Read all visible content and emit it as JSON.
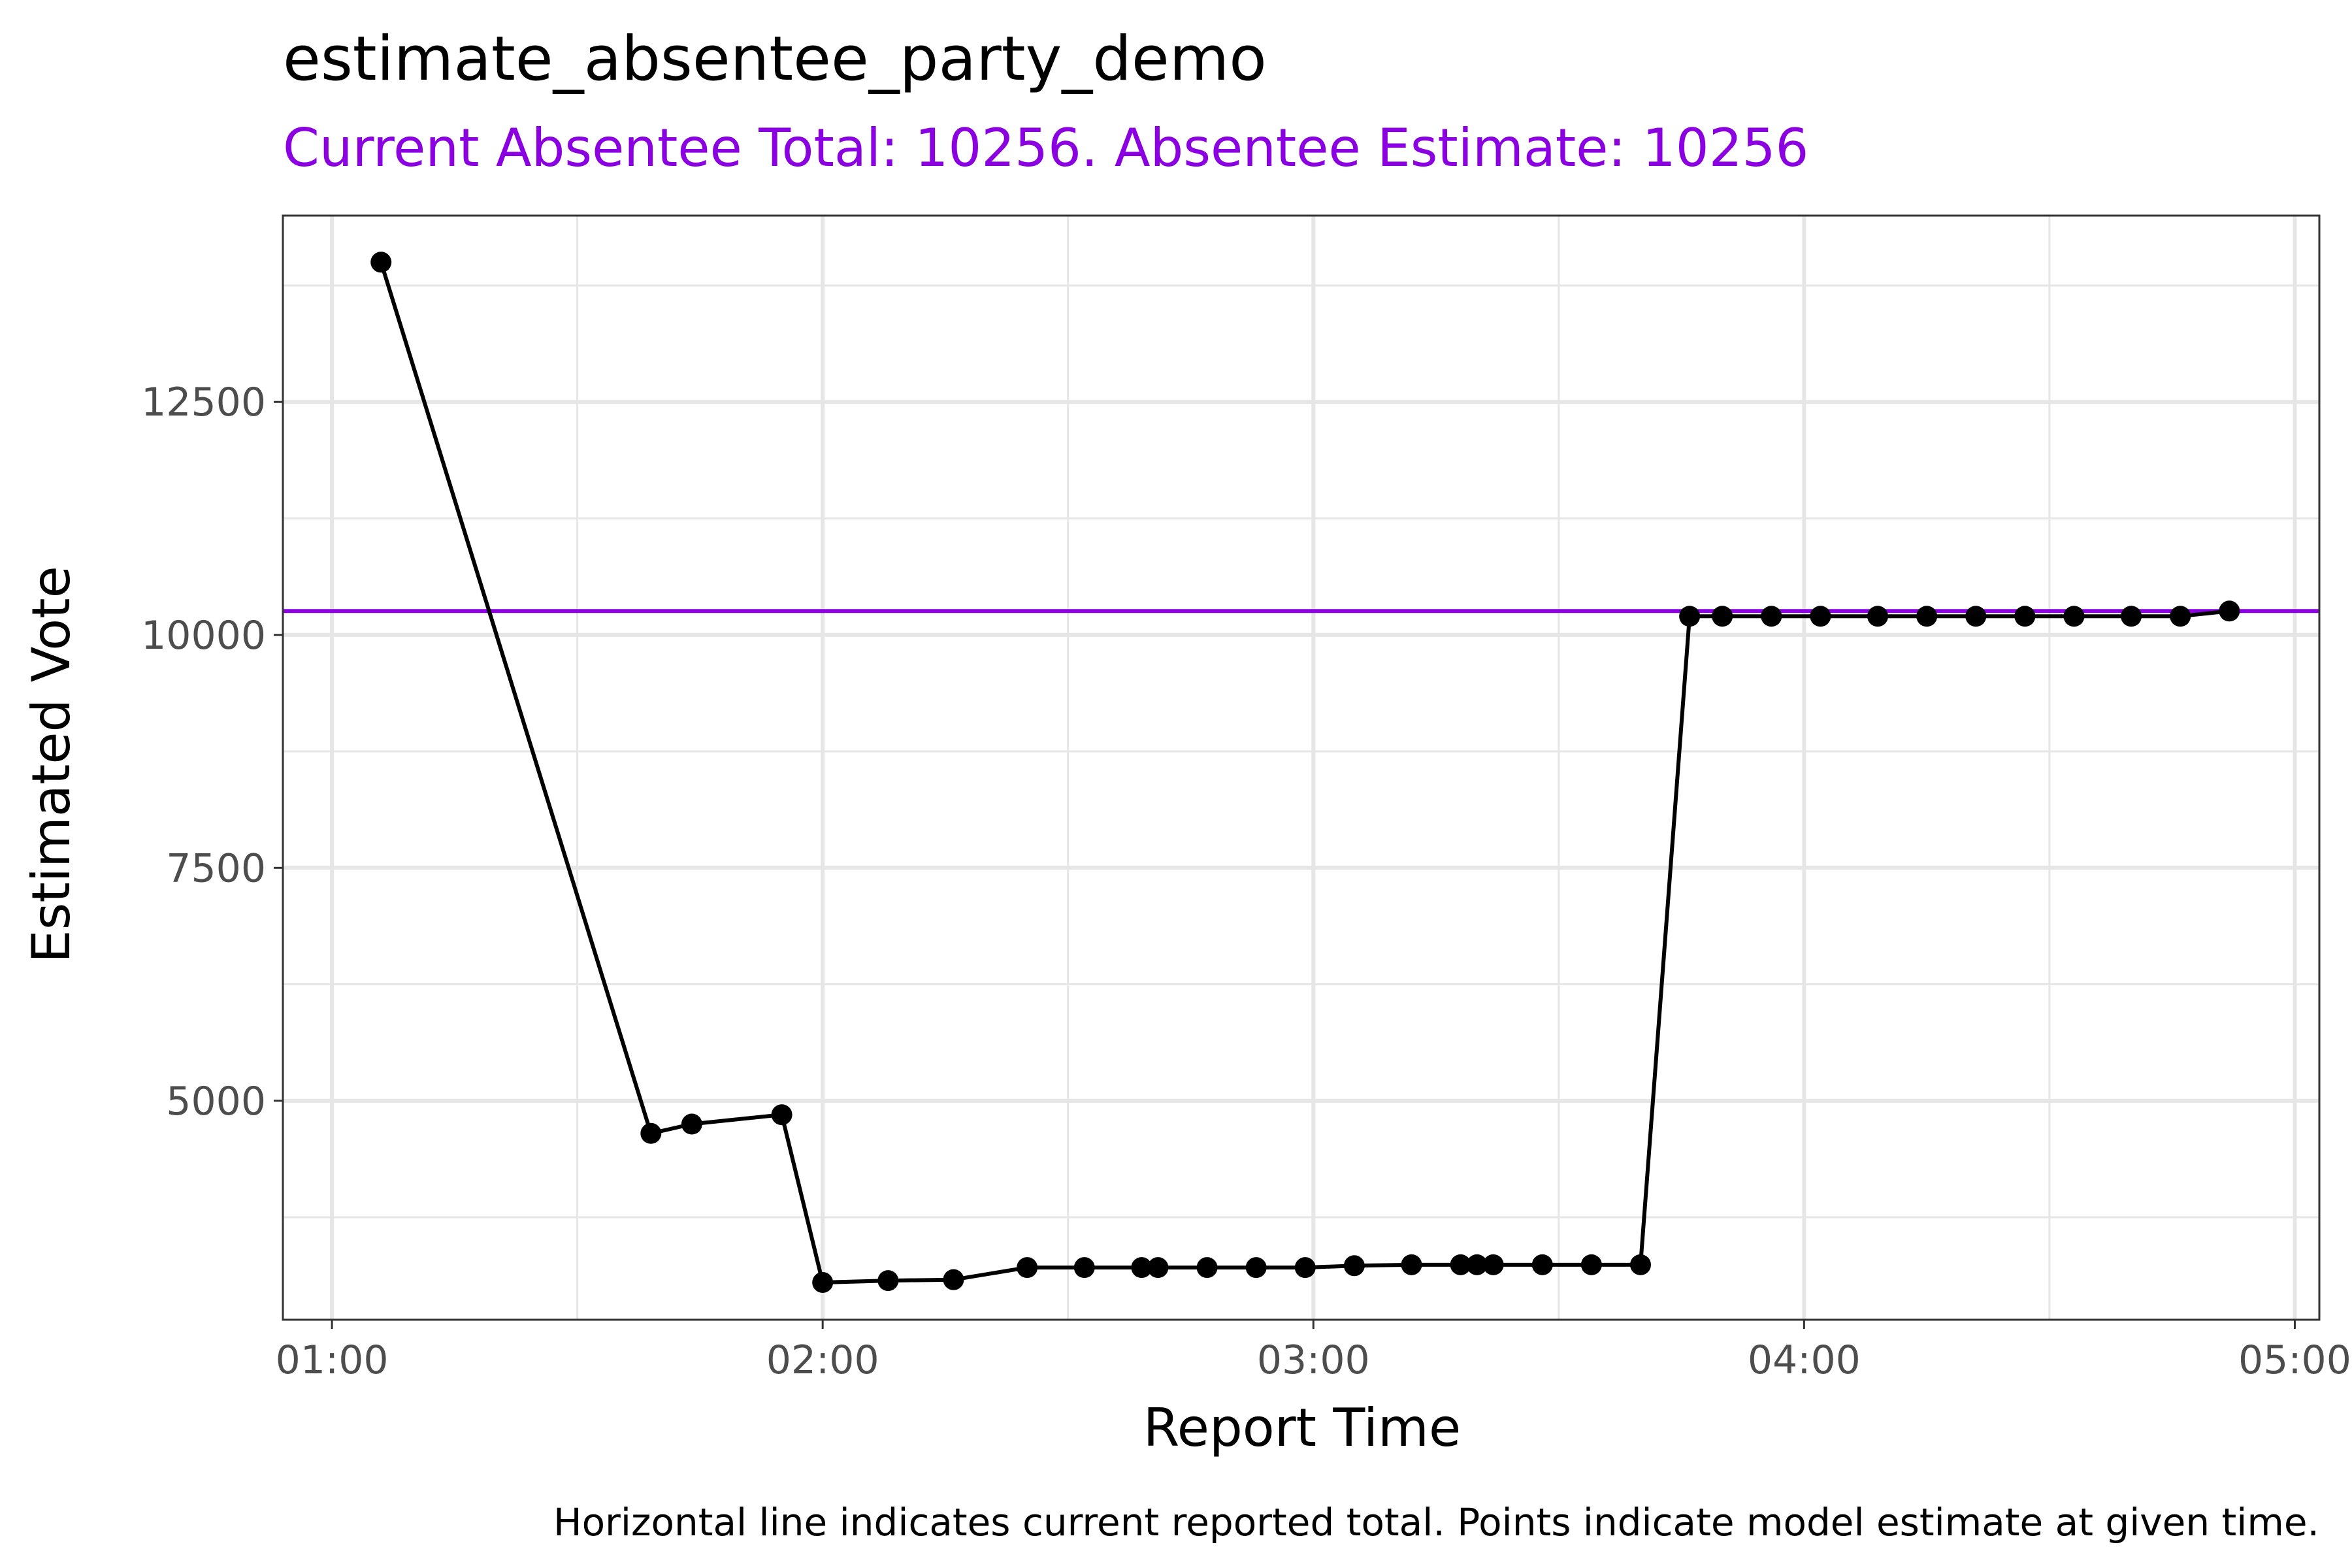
{
  "chart_data": {
    "type": "line",
    "title": "estimate_absentee_party_demo",
    "subtitle": "Current Absentee Total: 10256. Absentee Estimate: 10256",
    "xlabel": "Report Time",
    "ylabel": "Estimated Vote",
    "caption": "Horizontal line indicates current reported total. Points indicate model estimate at given time.",
    "x_unit": "time (HH:MM)",
    "xlim": [
      "00:54",
      "05:03"
    ],
    "ylim": [
      2650,
      14500
    ],
    "x_ticks": [
      "01:00",
      "02:00",
      "03:00",
      "04:00",
      "05:00"
    ],
    "y_ticks": [
      5000,
      7500,
      10000,
      12500
    ],
    "grid": true,
    "reference_line": {
      "y": 10256,
      "color": "#8B00E0"
    },
    "colors": {
      "series": "#000000",
      "reference": "#8B00E0",
      "grid": "#e6e6e6",
      "panel_border": "#333333"
    },
    "series": [
      {
        "x": [
          "01:06",
          "01:39",
          "01:44",
          "01:55",
          "02:00",
          "02:08",
          "02:16",
          "02:25",
          "02:32",
          "02:39",
          "02:41",
          "02:47",
          "02:53",
          "02:59",
          "03:05",
          "03:12",
          "03:18",
          "03:20",
          "03:22",
          "03:28",
          "03:34",
          "03:40",
          "03:46",
          "03:50",
          "03:56",
          "04:02",
          "04:09",
          "04:15",
          "04:21",
          "04:27",
          "04:33",
          "04:40",
          "04:46",
          "04:52"
        ],
        "y": [
          14000,
          4650,
          4750,
          4850,
          3050,
          3070,
          3080,
          3210,
          3210,
          3210,
          3210,
          3210,
          3210,
          3210,
          3230,
          3240,
          3240,
          3240,
          3240,
          3240,
          3240,
          3240,
          10200,
          10200,
          10200,
          10200,
          10200,
          10200,
          10200,
          10200,
          10200,
          10200,
          10200,
          10256
        ]
      }
    ]
  }
}
